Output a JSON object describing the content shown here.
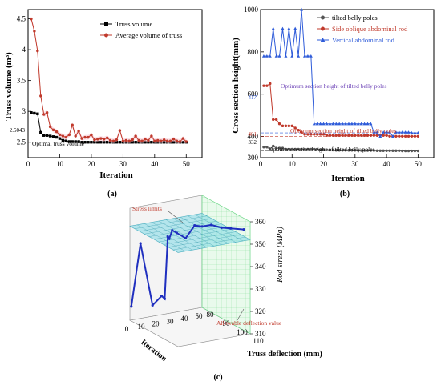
{
  "charts": [
    {
      "id": "a",
      "type": "line",
      "panel_label": "(a)",
      "xlabel": "Iteration",
      "ylabel": "Truss volume (m³)",
      "xlim": [
        0,
        55
      ],
      "ylim": [
        2.25,
        4.65
      ],
      "xticks": [
        0,
        10,
        20,
        30,
        40,
        50
      ],
      "yticks": [
        2.5,
        3.0,
        3.5,
        4.0,
        4.5
      ],
      "legend_position": "top-right",
      "series": [
        {
          "name": "Truss volume",
          "color": "#000000",
          "marker": "square",
          "values": [
            2.98,
            2.97,
            2.96,
            2.66,
            2.61,
            2.61,
            2.6,
            2.59,
            2.58,
            2.56,
            2.53,
            2.52,
            2.51,
            2.51,
            2.51,
            2.51,
            2.5,
            2.5,
            2.5,
            2.5,
            2.5,
            2.5,
            2.5,
            2.5,
            2.5,
            2.5,
            2.5,
            2.5,
            2.5,
            2.5,
            2.5,
            2.5,
            2.5,
            2.5,
            2.5,
            2.5,
            2.5,
            2.5,
            2.5,
            2.5,
            2.5,
            2.5,
            2.5,
            2.5,
            2.5,
            2.5,
            2.5,
            2.5,
            2.5,
            2.5
          ]
        },
        {
          "name": "Average volume of truss",
          "color": "#c0392b",
          "marker": "circle",
          "values": [
            4.5,
            4.3,
            3.98,
            3.25,
            2.95,
            2.98,
            2.75,
            2.7,
            2.67,
            2.62,
            2.6,
            2.58,
            2.62,
            2.78,
            2.6,
            2.68,
            2.56,
            2.58,
            2.58,
            2.62,
            2.54,
            2.55,
            2.56,
            2.55,
            2.57,
            2.53,
            2.52,
            2.54,
            2.69,
            2.52,
            2.53,
            2.52,
            2.54,
            2.6,
            2.53,
            2.52,
            2.55,
            2.53,
            2.6,
            2.52,
            2.53,
            2.52,
            2.54,
            2.52,
            2.52,
            2.55,
            2.52,
            2.51,
            2.56,
            2.51
          ]
        }
      ],
      "reference_line": {
        "value": 2.5043,
        "label": "2.5043",
        "text": "Optimal truss volume"
      }
    },
    {
      "id": "b",
      "type": "line",
      "panel_label": "(b)",
      "xlabel": "Iteration",
      "ylabel": "Cross section height(mm)",
      "xlim": [
        0,
        55
      ],
      "ylim": [
        300,
        1000
      ],
      "xticks": [
        0,
        10,
        20,
        30,
        40,
        50
      ],
      "yticks": [
        300,
        400,
        600,
        800,
        1000
      ],
      "legend_position": "top-right",
      "series": [
        {
          "name": "tilted belly poles",
          "color": "#555555",
          "marker": "circle",
          "values": [
            350,
            350,
            340,
            355,
            345,
            345,
            345,
            340,
            340,
            340,
            340,
            340,
            340,
            340,
            340,
            340,
            340,
            340,
            338,
            338,
            337,
            336,
            336,
            335,
            335,
            335,
            335,
            335,
            335,
            335,
            334,
            334,
            334,
            334,
            334,
            334,
            333,
            333,
            333,
            333,
            333,
            333,
            333,
            333,
            332,
            332,
            332,
            332,
            332,
            332
          ]
        },
        {
          "name": "Side oblique abdominal rod",
          "color": "#c0392b",
          "marker": "circle",
          "values": [
            640,
            640,
            650,
            480,
            480,
            460,
            450,
            450,
            450,
            450,
            440,
            430,
            420,
            410,
            410,
            410,
            410,
            410,
            410,
            410,
            405,
            405,
            405,
            405,
            405,
            405,
            405,
            405,
            405,
            405,
            405,
            405,
            405,
            405,
            405,
            405,
            405,
            405,
            405,
            405,
            401,
            401,
            401,
            401,
            401,
            401,
            401,
            401,
            401,
            401
          ]
        },
        {
          "name": "Vertical abdominal rod",
          "color": "#2e5bd9",
          "marker": "triangle",
          "values": [
            780,
            780,
            780,
            910,
            780,
            780,
            910,
            780,
            910,
            780,
            910,
            780,
            1000,
            780,
            780,
            780,
            460,
            460,
            460,
            460,
            460,
            460,
            460,
            460,
            460,
            460,
            460,
            460,
            460,
            460,
            460,
            460,
            460,
            460,
            460,
            420,
            420,
            400,
            420,
            420,
            420,
            400,
            420,
            420,
            420,
            420,
            420,
            417,
            417,
            417
          ]
        }
      ],
      "annotations": [
        {
          "value": 417,
          "label": "417",
          "text": "Optimum section height of tilted belly poles"
        },
        {
          "value": 401,
          "label": "401",
          "text": "Optimum section height of tilted belly poles"
        },
        {
          "value": 332,
          "label": "332",
          "text": "Optimum section height of tilted belly poles"
        }
      ]
    },
    {
      "id": "c",
      "type": "line",
      "panel_label": "(c)",
      "xlabel": "Iteration",
      "ylabel": "Truss deflection (mm)",
      "zlabel": "Rod stress (MPa)",
      "xlim": [
        0,
        50
      ],
      "ylim": [
        80,
        110
      ],
      "zlim": [
        310,
        360
      ],
      "xticks": [
        0,
        10,
        20,
        30,
        40,
        50
      ],
      "yticks": [
        80,
        90,
        100,
        110
      ],
      "zticks": [
        310,
        320,
        330,
        340,
        350,
        360
      ],
      "stress_limit_label": "Stress limits",
      "deflection_limit_label": "Allowable deflection value",
      "series": [
        {
          "name": "Rod stress",
          "color": "#1f2fbf",
          "iteration": [
            1,
            4,
            9,
            12,
            13,
            14,
            15,
            16,
            18,
            22,
            26,
            29,
            33,
            38,
            42,
            50
          ],
          "deflection": [
            80,
            83,
            86,
            89,
            90,
            91,
            91,
            92,
            93,
            95,
            97,
            99,
            101,
            103,
            105,
            106
          ],
          "stress": [
            316,
            345,
            318,
            323,
            322,
            350,
            349,
            353,
            352,
            350,
            356,
            356,
            357,
            356,
            356,
            355
          ]
        }
      ]
    }
  ]
}
